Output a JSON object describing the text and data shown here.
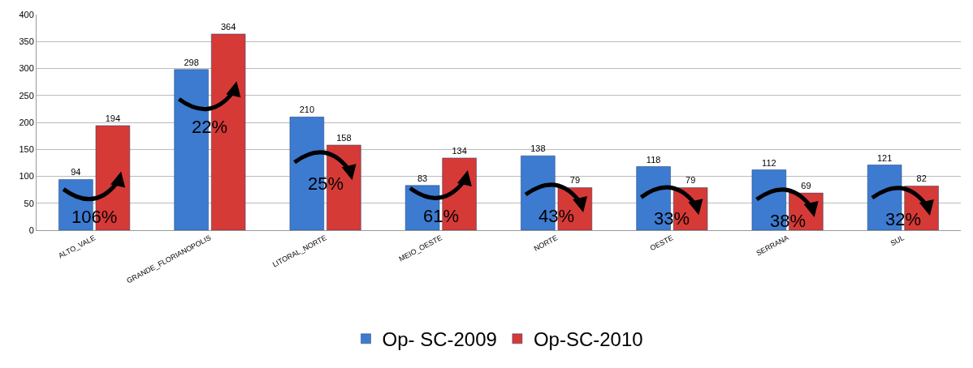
{
  "chart_data": {
    "type": "bar",
    "categories": [
      "ALTO_VALE",
      "GRANDE_FLORIANOPOLIS",
      "LITORAL_NORTE",
      "MEIO_OESTE",
      "NORTE",
      "OESTE",
      "SERRANA",
      "SUL"
    ],
    "series": [
      {
        "name": "Op- SC-2009",
        "color": "#3d7bd0",
        "values": [
          94,
          298,
          210,
          83,
          138,
          118,
          112,
          121
        ]
      },
      {
        "name": "Op-SC-2010",
        "color": "#d63a36",
        "values": [
          194,
          364,
          158,
          134,
          79,
          79,
          69,
          82
        ]
      }
    ],
    "ylim": [
      0,
      400
    ],
    "yticks": [
      0,
      50,
      100,
      150,
      200,
      250,
      300,
      350,
      400
    ],
    "grid": "y",
    "legend": "bottom",
    "data_labels": true,
    "annotations": [
      {
        "text": "106%",
        "x": "ALTO_VALE",
        "y": 25
      },
      {
        "text": "22%",
        "x": "GRANDE_FLORIANOPOLIS",
        "y": 192
      },
      {
        "text": "25%",
        "x": "LITORAL_NORTE",
        "y": 87
      },
      {
        "text": "61%",
        "x": "MEIO_OESTE",
        "y": 27
      },
      {
        "text": "43%",
        "x": "NORTE",
        "y": 27
      },
      {
        "text": "33%",
        "x": "OESTE",
        "y": 22
      },
      {
        "text": "38%",
        "x": "SERRANA",
        "y": 18
      },
      {
        "text": "32%",
        "x": "SUL",
        "y": 21
      }
    ]
  }
}
